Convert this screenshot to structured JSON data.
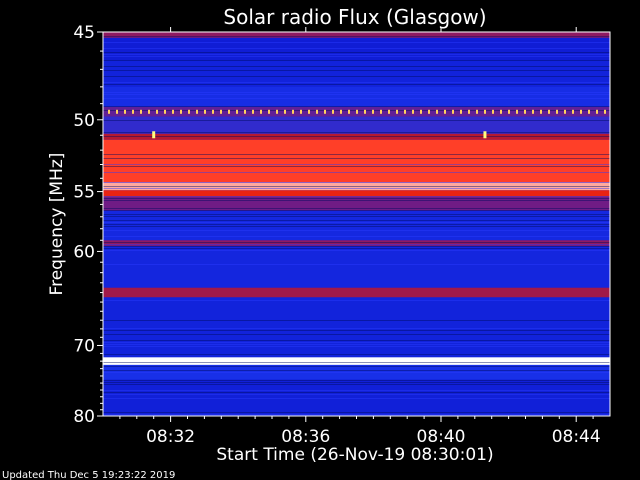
{
  "chart_data": {
    "type": "heatmap",
    "title": "Solar radio Flux (Glasgow)",
    "xlabel": "Start Time (26-Nov-19 08:30:01)",
    "ylabel": "Frequency [MHz]",
    "x_ticks": [
      "08:32",
      "08:36",
      "08:40",
      "08:44"
    ],
    "y_ticks": [
      45,
      50,
      55,
      60,
      70,
      80
    ],
    "y_scale": "reciprocal",
    "ylim": [
      45,
      80
    ],
    "x_range_minutes": [
      0,
      15
    ],
    "colormap": [
      "#0a10c8",
      "#1830e8",
      "#7a1a7a",
      "#c81818",
      "#ff2a10",
      "#ffffff"
    ],
    "bands": [
      {
        "from": 44.9,
        "to": 45.3,
        "level": 0.45
      },
      {
        "from": 45.3,
        "to": 46.5,
        "level": 0.08
      },
      {
        "from": 46.5,
        "to": 48.0,
        "level": 0.12
      },
      {
        "from": 48.0,
        "to": 49.2,
        "level": 0.18
      },
      {
        "from": 49.2,
        "to": 49.8,
        "level": 0.35
      },
      {
        "from": 49.8,
        "to": 50.9,
        "level": 0.25
      },
      {
        "from": 50.9,
        "to": 51.3,
        "level": 0.55
      },
      {
        "from": 51.3,
        "to": 54.3,
        "level": 0.82
      },
      {
        "from": 54.3,
        "to": 54.9,
        "level": 0.92
      },
      {
        "from": 54.9,
        "to": 55.4,
        "level": 0.72
      },
      {
        "from": 55.4,
        "to": 56.5,
        "level": 0.38
      },
      {
        "from": 56.5,
        "to": 59.0,
        "level": 0.15
      },
      {
        "from": 59.0,
        "to": 59.5,
        "level": 0.45
      },
      {
        "from": 59.5,
        "to": 63.5,
        "level": 0.14
      },
      {
        "from": 63.5,
        "to": 64.5,
        "level": 0.5
      },
      {
        "from": 64.5,
        "to": 71.5,
        "level": 0.12
      },
      {
        "from": 71.5,
        "to": 72.5,
        "level": 1.0
      },
      {
        "from": 72.5,
        "to": 74.5,
        "level": 0.2
      },
      {
        "from": 74.5,
        "to": 80.0,
        "level": 0.1
      }
    ],
    "spikes_minutes": [
      1.5,
      11.3
    ],
    "spike_frequency": 51.0
  },
  "footer": "Updated Thu Dec  5 19:23:22 2019"
}
